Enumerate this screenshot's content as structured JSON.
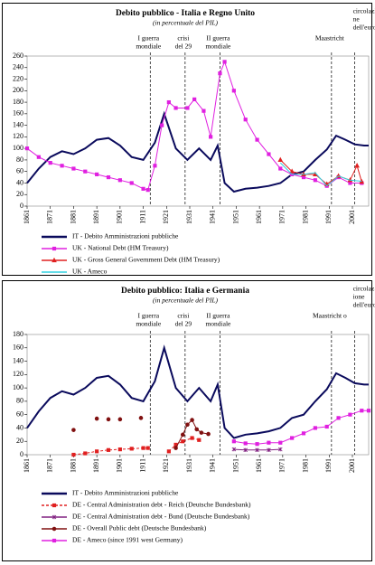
{
  "chart_data": [
    {
      "type": "line",
      "title": "Debito pubblico - Italia e Regno Unito",
      "subtitle": "(in percentuale del PIL)",
      "xlim": [
        1861,
        2008
      ],
      "xticks": [
        1861,
        1871,
        1881,
        1891,
        1901,
        1911,
        1921,
        1931,
        1941,
        1951,
        1961,
        1971,
        1981,
        1991,
        2001
      ],
      "ylim": [
        0,
        260
      ],
      "yticks": [
        0,
        20,
        40,
        60,
        80,
        100,
        120,
        140,
        160,
        180,
        200,
        220,
        240,
        260
      ],
      "events": [
        {
          "x": 1914,
          "label": [
            "I guerra",
            "mondiale"
          ]
        },
        {
          "x": 1929,
          "label": [
            "crisi",
            "del 29"
          ]
        },
        {
          "x": 1944,
          "label": [
            "II guerra",
            "mondiale"
          ]
        },
        {
          "x": 1992,
          "label": [
            "Maastricht"
          ]
        },
        {
          "x": 2002,
          "label": [
            "circolazio",
            "ne",
            "dell'euro"
          ]
        }
      ],
      "series": [
        {
          "name": "IT - Debito Amministrazioni pubbliche",
          "color": "#0a0a5c",
          "marker": "none",
          "dash": false,
          "x": [
            1861,
            1866,
            1871,
            1876,
            1881,
            1886,
            1891,
            1896,
            1901,
            1906,
            1911,
            1916,
            1920,
            1925,
            1930,
            1935,
            1940,
            1943,
            1946,
            1950,
            1955,
            1960,
            1965,
            1970,
            1975,
            1980,
            1985,
            1990,
            1994,
            1998,
            2002,
            2006,
            2008
          ],
          "values": [
            40,
            65,
            85,
            95,
            90,
            100,
            115,
            118,
            105,
            85,
            80,
            110,
            160,
            100,
            80,
            100,
            80,
            105,
            40,
            25,
            30,
            32,
            35,
            40,
            55,
            60,
            80,
            98,
            122,
            115,
            107,
            105,
            105
          ]
        },
        {
          "name": "UK - National Debt (HM Treasury)",
          "color": "#e020e0",
          "marker": "square",
          "dash": false,
          "x": [
            1861,
            1866,
            1871,
            1876,
            1881,
            1886,
            1891,
            1896,
            1901,
            1906,
            1911,
            1913,
            1916,
            1919,
            1922,
            1925,
            1930,
            1933,
            1937,
            1940,
            1944,
            1946,
            1950,
            1955,
            1960,
            1965,
            1970,
            1975,
            1980,
            1985,
            1990,
            1995,
            2000,
            2005
          ],
          "values": [
            100,
            85,
            75,
            70,
            65,
            60,
            55,
            50,
            45,
            40,
            30,
            28,
            70,
            140,
            180,
            170,
            170,
            185,
            165,
            120,
            230,
            250,
            200,
            150,
            115,
            90,
            65,
            55,
            50,
            45,
            35,
            50,
            40,
            40
          ]
        },
        {
          "name": "UK - Gross General Government Debt (HM Treasury)",
          "color": "#e02020",
          "marker": "triangle",
          "dash": false,
          "x": [
            1970,
            1975,
            1980,
            1985,
            1990,
            1995,
            2000,
            2003,
            2005
          ],
          "values": [
            80,
            60,
            55,
            55,
            38,
            52,
            45,
            70,
            42
          ]
        },
        {
          "name": "UK - Ameco",
          "color": "#30d0e0",
          "marker": "none",
          "dash": false,
          "x": [
            1970,
            1975,
            1980,
            1985,
            1990,
            1995,
            2000,
            2005
          ],
          "values": [
            75,
            55,
            55,
            58,
            35,
            52,
            45,
            43
          ]
        }
      ]
    },
    {
      "type": "line",
      "title": "Debito pubblico: Italia e Germania",
      "subtitle": "(in percentuale del PIL)",
      "xlim": [
        1861,
        2008
      ],
      "xticks": [
        1861,
        1871,
        1881,
        1891,
        1901,
        1911,
        1921,
        1931,
        1941,
        1951,
        1961,
        1971,
        1981,
        1991,
        2001
      ],
      "ylim": [
        0,
        180
      ],
      "yticks": [
        0,
        20,
        40,
        60,
        80,
        100,
        120,
        140,
        160,
        180
      ],
      "events": [
        {
          "x": 1914,
          "label": [
            "I guerra",
            "mondiale"
          ]
        },
        {
          "x": 1929,
          "label": [
            "crisi",
            "del 29"
          ]
        },
        {
          "x": 1944,
          "label": [
            "II guerra",
            "mondiale"
          ]
        },
        {
          "x": 1992,
          "label": [
            "Maastricht o"
          ]
        },
        {
          "x": 2002,
          "label": [
            "circolaz",
            "ione",
            "dell'euro"
          ]
        }
      ],
      "series": [
        {
          "name": "IT - Debito Amministrazioni pubbliche",
          "color": "#0a0a5c",
          "marker": "none",
          "dash": false,
          "x": [
            1861,
            1866,
            1871,
            1876,
            1881,
            1886,
            1891,
            1896,
            1901,
            1906,
            1911,
            1916,
            1920,
            1925,
            1930,
            1935,
            1940,
            1943,
            1946,
            1950,
            1955,
            1960,
            1965,
            1970,
            1975,
            1980,
            1985,
            1990,
            1994,
            1998,
            2002,
            2006,
            2008
          ],
          "values": [
            40,
            65,
            85,
            95,
            90,
            100,
            115,
            118,
            105,
            85,
            80,
            110,
            160,
            100,
            80,
            100,
            80,
            105,
            40,
            25,
            30,
            32,
            35,
            40,
            55,
            60,
            80,
            98,
            122,
            115,
            107,
            105,
            105
          ]
        },
        {
          "name": "DE - Central Administration debt - Reich (Deutsche Bundesbank)",
          "color": "#e02020",
          "marker": "square",
          "dash": true,
          "x": [
            1881,
            1886,
            1891,
            1896,
            1901,
            1906,
            1911,
            1913,
            null,
            1922,
            1925,
            1928,
            1932,
            1935
          ],
          "values": [
            0,
            2,
            5,
            7,
            8,
            9,
            10,
            10,
            null,
            5,
            15,
            20,
            25,
            22
          ]
        },
        {
          "name": "DE - Central Administration debt - Bund (Deutsche Bundesbank)",
          "color": "#802080",
          "marker": "star",
          "dash": false,
          "x": [
            1950,
            1955,
            1960,
            1965,
            1970
          ],
          "values": [
            8,
            7,
            7,
            7,
            8
          ]
        },
        {
          "name": "DE - Overall Public debt (Deutsche Bundesbank)",
          "color": "#801010",
          "marker": "circle",
          "dash": false,
          "x": [
            1881,
            null,
            1891,
            null,
            1896,
            null,
            1901,
            null,
            1910,
            null,
            1925,
            1928,
            1930,
            1932,
            1934,
            1936,
            1939
          ],
          "values": [
            37,
            null,
            54,
            null,
            53,
            null,
            53,
            null,
            55,
            null,
            10,
            30,
            45,
            52,
            38,
            33,
            31
          ]
        },
        {
          "name": "DE - Ameco (since 1991 west Germany)",
          "color": "#e020e0",
          "marker": "square",
          "dash": false,
          "x": [
            1950,
            1955,
            1960,
            1965,
            1970,
            1975,
            1980,
            1985,
            1990,
            1995,
            2000,
            2005,
            2008
          ],
          "values": [
            20,
            17,
            16,
            18,
            18,
            25,
            32,
            40,
            42,
            55,
            60,
            66,
            66
          ]
        }
      ]
    }
  ]
}
